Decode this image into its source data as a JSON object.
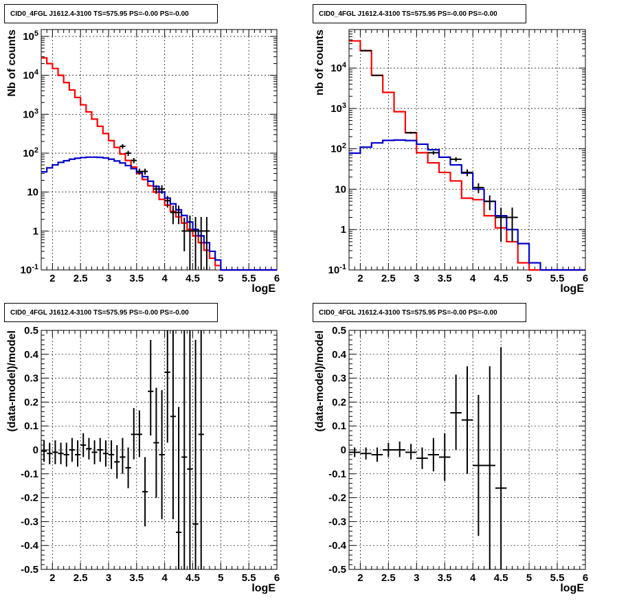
{
  "chart_data": [
    {
      "type": "line",
      "panel": "top-left",
      "title": "CID0_4FGL J1612.4-3100 TS=575.95 PS=-0.00 PS=-0.00",
      "xlabel": "logE",
      "ylabel": "Nb of counts",
      "xlim": [
        1.8,
        6.0
      ],
      "ylim": [
        0.1,
        150000
      ],
      "yscale": "log",
      "grid": true,
      "xticks": [
        "2",
        "2.5",
        "3",
        "3.5",
        "4",
        "4.5",
        "5",
        "5.5",
        "6"
      ],
      "yticks": [
        "10^-1",
        "1",
        "10",
        "10^2",
        "10^3",
        "10^4",
        "10^5"
      ],
      "bin_edges": [
        1.8,
        1.9,
        2.0,
        2.1,
        2.2,
        2.3,
        2.4,
        2.5,
        2.6,
        2.7,
        2.8,
        2.9,
        3.0,
        3.1,
        3.2,
        3.3,
        3.4,
        3.5,
        3.6,
        3.7,
        3.8,
        3.9,
        4.0,
        4.1,
        4.2,
        4.3,
        4.4,
        4.5,
        4.6,
        4.7,
        4.8,
        4.9,
        5.0,
        5.1,
        5.2,
        5.3,
        5.4,
        5.5,
        5.6,
        5.7,
        5.8,
        5.9,
        6.0
      ],
      "series": [
        {
          "color": "#ff0000",
          "style": "step",
          "values": [
            28000,
            20000,
            15000,
            10000,
            6500,
            4200,
            2700,
            1750,
            1150,
            750,
            490,
            320,
            210,
            140,
            95,
            65,
            44,
            30,
            21,
            14.5,
            10,
            6.5,
            4.6,
            3.2,
            2.3,
            1.6,
            1.1,
            0.75,
            0.5,
            0.32,
            0.2,
            0.13,
            0.1,
            0.1,
            0.1,
            0.1,
            0.1,
            0.1,
            0.1,
            0.1,
            0.1,
            0.1
          ]
        },
        {
          "color": "#0000cc",
          "style": "step",
          "values": [
            33,
            42,
            50,
            58,
            64,
            70,
            74,
            77,
            79,
            79,
            78,
            75,
            70,
            63,
            56,
            48,
            40,
            32,
            25,
            19,
            14,
            10,
            7,
            5,
            3.5,
            2.5,
            1.7,
            1.1,
            0.75,
            0.5,
            0.3,
            0.18,
            0.1,
            0.1,
            0.1,
            0.1,
            0.1,
            0.1,
            0.1,
            0.1,
            0.1,
            0.1
          ]
        }
      ],
      "data_points": [
        {
          "x": 3.25,
          "y": 150,
          "xerr": 0.05,
          "ylo": 130,
          "yhi": 170
        },
        {
          "x": 3.35,
          "y": 100,
          "xerr": 0.05,
          "ylo": 85,
          "yhi": 115
        },
        {
          "x": 3.45,
          "y": 65,
          "xerr": 0.05,
          "ylo": 55,
          "yhi": 75
        },
        {
          "x": 3.55,
          "y": 34,
          "xerr": 0.05,
          "ylo": 28,
          "yhi": 40
        },
        {
          "x": 3.65,
          "y": 34,
          "xerr": 0.05,
          "ylo": 28,
          "yhi": 40
        },
        {
          "x": 3.85,
          "y": 12,
          "xerr": 0.05,
          "ylo": 9,
          "yhi": 15
        },
        {
          "x": 3.95,
          "y": 12,
          "xerr": 0.05,
          "ylo": 9,
          "yhi": 15
        },
        {
          "x": 4.05,
          "y": 6,
          "xerr": 0.05,
          "ylo": 4,
          "yhi": 8
        },
        {
          "x": 4.15,
          "y": 3,
          "xerr": 0.05,
          "ylo": 1.5,
          "yhi": 4.5
        },
        {
          "x": 4.25,
          "y": 3,
          "xerr": 0.05,
          "ylo": 1.5,
          "yhi": 4.5
        },
        {
          "x": 4.35,
          "y": 1,
          "xerr": 0.05,
          "ylo": 0.3,
          "yhi": 2.2
        },
        {
          "x": 4.45,
          "y": 1,
          "xerr": 0.05,
          "ylo": 0.1,
          "yhi": 2.5
        },
        {
          "x": 4.55,
          "y": 1,
          "xerr": 0.05,
          "ylo": 0.1,
          "yhi": 2.3
        },
        {
          "x": 4.65,
          "y": 1,
          "xerr": 0.05,
          "ylo": 0.1,
          "yhi": 2.3
        },
        {
          "x": 4.75,
          "y": 1,
          "xerr": 0.05,
          "ylo": 0.1,
          "yhi": 2.3
        }
      ]
    },
    {
      "type": "line",
      "panel": "top-right",
      "title": "CID0_4FGL J1612.4-3100 TS=575.95 PS=-0.00 PS=-0.00",
      "xlabel": "logE",
      "ylabel": "nb of counts",
      "xlim": [
        1.8,
        6.0
      ],
      "ylim": [
        0.1,
        90000
      ],
      "yscale": "log",
      "grid": true,
      "xticks": [
        "2",
        "2.5",
        "3",
        "3.5",
        "4",
        "4.5",
        "5",
        "5.5",
        "6"
      ],
      "yticks": [
        "10^-1",
        "1",
        "10",
        "10^2",
        "10^3",
        "10^4"
      ],
      "bin_edges": [
        1.8,
        2.0,
        2.2,
        2.4,
        2.6,
        2.8,
        3.0,
        3.2,
        3.4,
        3.6,
        3.8,
        4.0,
        4.2,
        4.4,
        4.6,
        4.8,
        5.0,
        5.2,
        5.4,
        5.6,
        5.8,
        6.0
      ],
      "series": [
        {
          "color": "#ff0000",
          "style": "step",
          "values": [
            47000,
            27000,
            6600,
            2500,
            830,
            250,
            80,
            45,
            26,
            16,
            6,
            5.5,
            2.2,
            1.1,
            0.5,
            0.15,
            0.1,
            0.1,
            0.1,
            0.1,
            0.1
          ]
        },
        {
          "color": "#0000cc",
          "style": "step",
          "values": [
            78,
            110,
            140,
            162,
            165,
            160,
            130,
            95,
            62,
            40,
            25,
            10,
            5,
            2.2,
            1.0,
            0.45,
            0.15,
            0.1,
            0.1,
            0.1,
            0.1
          ]
        }
      ],
      "data_points": [
        {
          "x": 2.1,
          "y": 27000,
          "xerr": 0.1,
          "ylo": 26000,
          "yhi": 28000
        },
        {
          "x": 2.3,
          "y": 6600,
          "xerr": 0.1,
          "ylo": 6400,
          "yhi": 6800
        },
        {
          "x": 2.9,
          "y": 250,
          "xerr": 0.1,
          "ylo": 235,
          "yhi": 265
        },
        {
          "x": 3.3,
          "y": 80,
          "xerr": 0.1,
          "ylo": 72,
          "yhi": 88
        },
        {
          "x": 3.7,
          "y": 55,
          "xerr": 0.1,
          "ylo": 48,
          "yhi": 62
        },
        {
          "x": 3.9,
          "y": 26,
          "xerr": 0.1,
          "ylo": 21,
          "yhi": 31
        },
        {
          "x": 4.1,
          "y": 11,
          "xerr": 0.1,
          "ylo": 8,
          "yhi": 14
        },
        {
          "x": 4.3,
          "y": 5,
          "xerr": 0.1,
          "ylo": 3,
          "yhi": 7
        },
        {
          "x": 4.5,
          "y": 2,
          "xerr": 0.1,
          "ylo": 0.5,
          "yhi": 3.5
        },
        {
          "x": 4.7,
          "y": 2,
          "xerr": 0.1,
          "ylo": 0.5,
          "yhi": 3.5
        }
      ]
    },
    {
      "type": "scatter",
      "panel": "bottom-left",
      "title": "CID0_4FGL J1612.4-3100 TS=575.95 PS=-0.00 PS=-0.00",
      "xlabel": "logE",
      "ylabel": "(data-model)/model",
      "xlim": [
        1.8,
        6.0
      ],
      "ylim": [
        -0.5,
        0.5
      ],
      "grid": true,
      "xticks": [
        "2",
        "2.5",
        "3",
        "3.5",
        "4",
        "4.5",
        "5",
        "5.5",
        "6"
      ],
      "yticks": [
        "-0.5",
        "-0.4",
        "-0.3",
        "-0.2",
        "-0.1",
        "0",
        "0.1",
        "0.2",
        "0.3",
        "0.4",
        "0.5"
      ],
      "data_points": [
        {
          "x": 1.85,
          "y": -0.005,
          "xerr": 0.05,
          "ylo": -0.05,
          "yhi": 0.04
        },
        {
          "x": 1.95,
          "y": -0.015,
          "xerr": 0.05,
          "ylo": -0.06,
          "yhi": 0.03
        },
        {
          "x": 2.05,
          "y": -0.01,
          "xerr": 0.05,
          "ylo": -0.06,
          "yhi": 0.04
        },
        {
          "x": 2.15,
          "y": -0.015,
          "xerr": 0.05,
          "ylo": -0.06,
          "yhi": 0.03
        },
        {
          "x": 2.25,
          "y": -0.02,
          "xerr": 0.05,
          "ylo": -0.07,
          "yhi": 0.03
        },
        {
          "x": 2.35,
          "y": 0.0,
          "xerr": 0.05,
          "ylo": -0.05,
          "yhi": 0.05
        },
        {
          "x": 2.45,
          "y": -0.02,
          "xerr": 0.05,
          "ylo": -0.07,
          "yhi": 0.04
        },
        {
          "x": 2.55,
          "y": 0.02,
          "xerr": 0.05,
          "ylo": -0.03,
          "yhi": 0.07
        },
        {
          "x": 2.65,
          "y": 0.005,
          "xerr": 0.05,
          "ylo": -0.04,
          "yhi": 0.05
        },
        {
          "x": 2.75,
          "y": -0.01,
          "xerr": 0.05,
          "ylo": -0.06,
          "yhi": 0.04
        },
        {
          "x": 2.85,
          "y": 0.0,
          "xerr": 0.05,
          "ylo": -0.05,
          "yhi": 0.05
        },
        {
          "x": 2.95,
          "y": -0.015,
          "xerr": 0.05,
          "ylo": -0.07,
          "yhi": 0.04
        },
        {
          "x": 3.05,
          "y": -0.02,
          "xerr": 0.05,
          "ylo": -0.08,
          "yhi": 0.04
        },
        {
          "x": 3.15,
          "y": -0.05,
          "xerr": 0.05,
          "ylo": -0.12,
          "yhi": 0.02
        },
        {
          "x": 3.25,
          "y": -0.03,
          "xerr": 0.05,
          "ylo": -0.1,
          "yhi": 0.05
        },
        {
          "x": 3.35,
          "y": -0.075,
          "xerr": 0.05,
          "ylo": -0.16,
          "yhi": 0.01
        },
        {
          "x": 3.45,
          "y": 0.065,
          "xerr": 0.05,
          "ylo": -0.04,
          "yhi": 0.175
        },
        {
          "x": 3.55,
          "y": 0.065,
          "xerr": 0.05,
          "ylo": -0.03,
          "yhi": 0.165
        },
        {
          "x": 3.65,
          "y": -0.175,
          "xerr": 0.05,
          "ylo": -0.32,
          "yhi": -0.03
        },
        {
          "x": 3.75,
          "y": 0.245,
          "xerr": 0.05,
          "ylo": 0.06,
          "yhi": 0.46
        },
        {
          "x": 3.85,
          "y": 0.03,
          "xerr": 0.05,
          "ylo": -0.2,
          "yhi": 0.26
        },
        {
          "x": 3.95,
          "y": -0.02,
          "xerr": 0.05,
          "ylo": -0.29,
          "yhi": 0.25
        },
        {
          "x": 4.05,
          "y": 0.325,
          "xerr": 0.05,
          "ylo": 0.03,
          "yhi": 0.5
        },
        {
          "x": 4.15,
          "y": 0.14,
          "xerr": 0.05,
          "ylo": -0.29,
          "yhi": 0.5
        },
        {
          "x": 4.25,
          "y": -0.345,
          "xerr": 0.05,
          "ylo": -0.5,
          "yhi": 0.18
        },
        {
          "x": 4.35,
          "y": -0.03,
          "xerr": 0.05,
          "ylo": -0.5,
          "yhi": 0.5
        },
        {
          "x": 4.45,
          "y": -0.08,
          "xerr": 0.05,
          "ylo": -0.5,
          "yhi": 0.5
        },
        {
          "x": 4.55,
          "y": -0.31,
          "xerr": 0.05,
          "ylo": -0.5,
          "yhi": 0.46
        },
        {
          "x": 4.65,
          "y": 0.065,
          "xerr": 0.05,
          "ylo": -0.5,
          "yhi": 0.5
        }
      ]
    },
    {
      "type": "scatter",
      "panel": "bottom-right",
      "title": "CID0_4FGL J1612.4-3100 TS=575.95 PS=-0.00 PS=-0.00",
      "xlabel": "logE",
      "ylabel": "(data-model)/model",
      "xlim": [
        1.8,
        6.0
      ],
      "ylim": [
        -0.5,
        0.5
      ],
      "grid": true,
      "xticks": [
        "2",
        "2.5",
        "3",
        "3.5",
        "4",
        "4.5",
        "5",
        "5.5",
        "6"
      ],
      "yticks": [
        "-0.5",
        "-0.4",
        "-0.3",
        "-0.2",
        "-0.1",
        "0",
        "0.1",
        "0.2",
        "0.3",
        "0.4",
        "0.5"
      ],
      "data_points": [
        {
          "x": 1.9,
          "y": -0.01,
          "xerr": 0.1,
          "ylo": -0.03,
          "yhi": 0.01
        },
        {
          "x": 2.1,
          "y": -0.015,
          "xerr": 0.1,
          "ylo": -0.04,
          "yhi": 0.01
        },
        {
          "x": 2.3,
          "y": -0.02,
          "xerr": 0.1,
          "ylo": -0.05,
          "yhi": 0.01
        },
        {
          "x": 2.5,
          "y": 0.0,
          "xerr": 0.1,
          "ylo": -0.03,
          "yhi": 0.03
        },
        {
          "x": 2.7,
          "y": 0.0,
          "xerr": 0.1,
          "ylo": -0.03,
          "yhi": 0.035
        },
        {
          "x": 2.9,
          "y": -0.01,
          "xerr": 0.1,
          "ylo": -0.04,
          "yhi": 0.025
        },
        {
          "x": 3.1,
          "y": -0.035,
          "xerr": 0.1,
          "ylo": -0.08,
          "yhi": 0.01
        },
        {
          "x": 3.3,
          "y": -0.02,
          "xerr": 0.1,
          "ylo": -0.09,
          "yhi": 0.05
        },
        {
          "x": 3.5,
          "y": -0.03,
          "xerr": 0.1,
          "ylo": -0.13,
          "yhi": 0.07
        },
        {
          "x": 3.7,
          "y": 0.155,
          "xerr": 0.1,
          "ylo": 0.0,
          "yhi": 0.315
        },
        {
          "x": 3.9,
          "y": 0.125,
          "xerr": 0.1,
          "ylo": -0.1,
          "yhi": 0.35
        },
        {
          "x": 4.1,
          "y": -0.065,
          "xerr": 0.1,
          "ylo": -0.36,
          "yhi": 0.23
        },
        {
          "x": 4.3,
          "y": -0.065,
          "xerr": 0.1,
          "ylo": -0.5,
          "yhi": 0.35
        },
        {
          "x": 4.5,
          "y": -0.16,
          "xerr": 0.1,
          "ylo": -0.5,
          "yhi": 0.43
        }
      ]
    }
  ]
}
